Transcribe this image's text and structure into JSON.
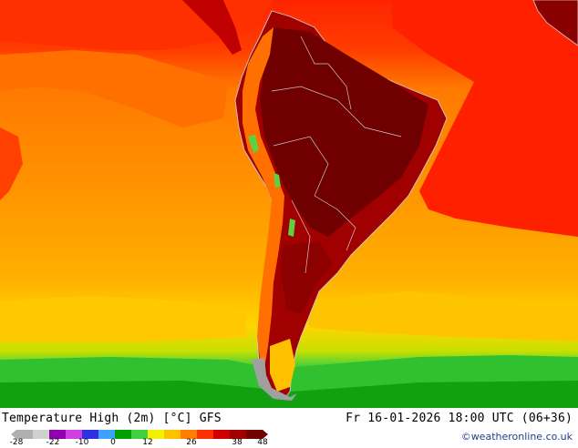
{
  "title": "Temperature High (2m) [°C] GFS",
  "datetime": "Fr 16-01-2026 18:00 UTC (06+36)",
  "credit": "©weatheronline.co.uk",
  "legend": {
    "ticks": [
      "-28",
      "-22",
      "-10",
      "0",
      "12",
      "26",
      "38",
      "48"
    ],
    "colors": [
      "#b0b0b0",
      "#d0d0d0",
      "#9000b0",
      "#d040e0",
      "#3030e0",
      "#40a0ff",
      "#00a000",
      "#40d040",
      "#f0f000",
      "#ffc000",
      "#ff8000",
      "#ff3000",
      "#d00000",
      "#a00000",
      "#700000"
    ]
  },
  "colors": {
    "ocean_warm": "#ff8c00",
    "ocean_mid": "#ffa500",
    "ocean_cool": "#ffd000",
    "ocean_cold": "#30c030",
    "tropics": "#ff2000",
    "continent_hot": "#a00000",
    "continent_very_hot": "#7a0000",
    "andes_cool": "#60d040",
    "ice": "#a0a0a0"
  }
}
